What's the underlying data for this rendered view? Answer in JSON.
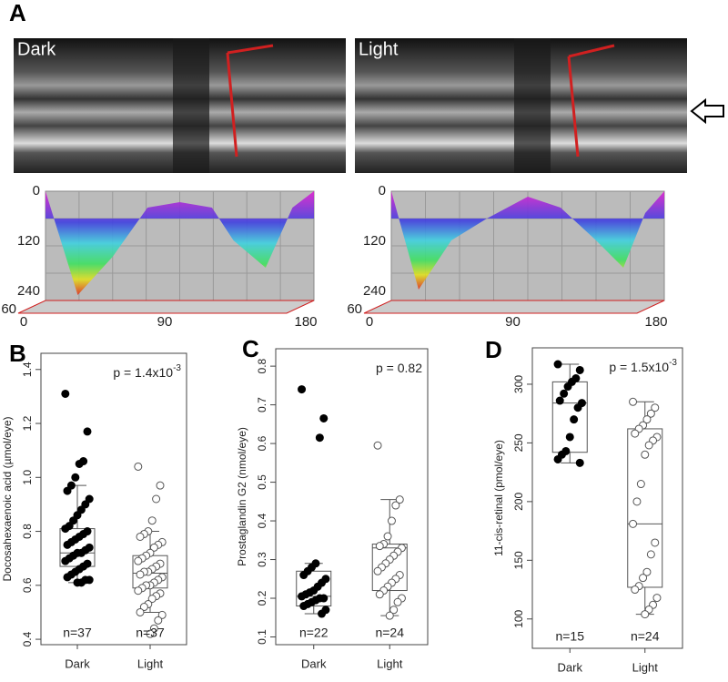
{
  "chart_data": [
    {
      "type": "surface",
      "panel_label": "A",
      "images": [
        "Dark",
        "Light"
      ],
      "zticks": [
        0,
        120,
        240
      ],
      "xticks": [
        0,
        90,
        180
      ],
      "yticks": [
        60
      ]
    },
    {
      "type": "box",
      "panel_label": "B",
      "ylabel": "Docosahexaenoic acid (µmol/eye)",
      "annotation": "p = 1.4x10",
      "annotation_superscript": "-3",
      "ylim": [
        0.38,
        1.46
      ],
      "yticks": [
        0.4,
        0.6,
        0.8,
        {
          "value": 1,
          "label": "1.0"
        },
        1.2,
        1.4
      ],
      "groups": [
        {
          "name": "Dark",
          "marker": "filled",
          "n_label": "n=37",
          "whislo": 0.61,
          "q1": 0.67,
          "median": 0.72,
          "q3": 0.81,
          "whishi": 0.97,
          "points": [
            1.31,
            1.17,
            1.06,
            1.05,
            1.0,
            0.97,
            0.95,
            0.92,
            0.9,
            0.88,
            0.86,
            0.84,
            0.82,
            0.81,
            0.8,
            0.79,
            0.78,
            0.77,
            0.76,
            0.75,
            0.74,
            0.73,
            0.72,
            0.72,
            0.71,
            0.7,
            0.69,
            0.68,
            0.67,
            0.66,
            0.65,
            0.64,
            0.63,
            0.62,
            0.62,
            0.61,
            0.61
          ]
        },
        {
          "name": "Light",
          "marker": "open",
          "n_label": "n=37",
          "whislo": 0.5,
          "q1": 0.59,
          "median": 0.645,
          "q3": 0.71,
          "whishi": 0.8,
          "points": [
            1.04,
            0.97,
            0.92,
            0.84,
            0.8,
            0.79,
            0.78,
            0.76,
            0.75,
            0.74,
            0.72,
            0.71,
            0.7,
            0.69,
            0.68,
            0.67,
            0.66,
            0.65,
            0.65,
            0.64,
            0.63,
            0.62,
            0.61,
            0.6,
            0.6,
            0.59,
            0.58,
            0.57,
            0.56,
            0.55,
            0.53,
            0.52,
            0.5,
            0.49,
            0.47,
            0.44,
            0.42
          ]
        }
      ]
    },
    {
      "type": "box",
      "panel_label": "C",
      "ylabel": "Prostaglandin G2 (nmol/eye)",
      "annotation": "p = 0.82",
      "ylim": [
        0.08,
        0.845
      ],
      "yticks": [
        0.1,
        0.2,
        0.3,
        0.4,
        0.5,
        0.6,
        0.7,
        0.8
      ],
      "groups": [
        {
          "name": "Dark",
          "marker": "filled",
          "n_label": "n=22",
          "whislo": 0.16,
          "q1": 0.18,
          "median": 0.205,
          "q3": 0.27,
          "whishi": 0.29,
          "points": [
            0.74,
            0.665,
            0.615,
            0.29,
            0.28,
            0.27,
            0.26,
            0.25,
            0.24,
            0.23,
            0.22,
            0.215,
            0.21,
            0.205,
            0.2,
            0.2,
            0.195,
            0.19,
            0.185,
            0.18,
            0.17,
            0.16
          ]
        },
        {
          "name": "Light",
          "marker": "open",
          "n_label": "n=24",
          "whislo": 0.155,
          "q1": 0.22,
          "median": 0.33,
          "q3": 0.34,
          "whishi": 0.455,
          "points": [
            0.595,
            0.455,
            0.44,
            0.4,
            0.36,
            0.34,
            0.335,
            0.33,
            0.32,
            0.31,
            0.3,
            0.29,
            0.28,
            0.27,
            0.26,
            0.25,
            0.24,
            0.23,
            0.22,
            0.21,
            0.2,
            0.19,
            0.17,
            0.155
          ]
        }
      ]
    },
    {
      "type": "box",
      "panel_label": "D",
      "ylabel": "11-cis-retinal (pmol/eye)",
      "annotation": "p = 1.5x10",
      "annotation_superscript": "-3",
      "ylim": [
        75,
        331
      ],
      "yticks": [
        100,
        150,
        200,
        250,
        300
      ],
      "groups": [
        {
          "name": "Dark",
          "marker": "filled",
          "n_label": "n=15",
          "whislo": 233,
          "q1": 242,
          "median": 284,
          "q3": 302,
          "whishi": 317,
          "points": [
            317,
            312,
            305,
            302,
            298,
            292,
            286,
            284,
            280,
            270,
            255,
            243,
            240,
            236,
            233
          ]
        },
        {
          "name": "Light",
          "marker": "open",
          "n_label": "n=24",
          "whislo": 104,
          "q1": 127,
          "median": 181,
          "q3": 262,
          "whishi": 285,
          "points": [
            285,
            280,
            275,
            270,
            265,
            262,
            258,
            255,
            252,
            248,
            240,
            215,
            200,
            181,
            165,
            155,
            140,
            135,
            128,
            125,
            118,
            112,
            108,
            104
          ]
        }
      ]
    }
  ]
}
